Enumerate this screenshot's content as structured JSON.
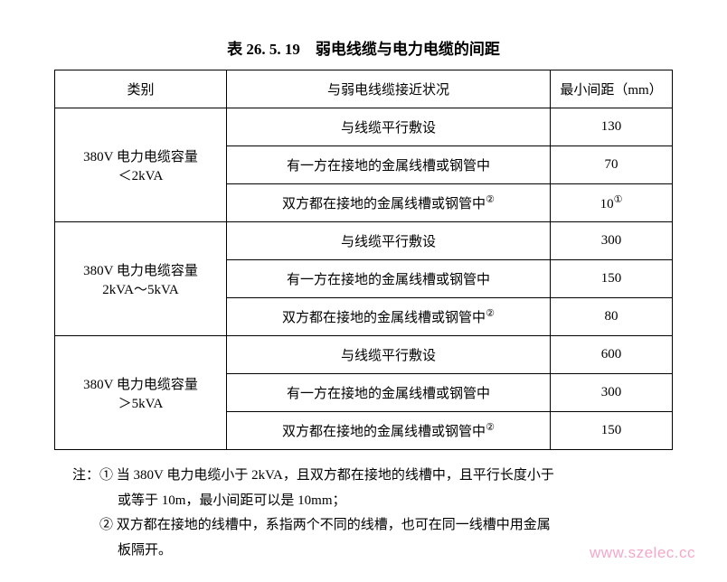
{
  "title": "表 26. 5. 19　弱电线缆与电力电缆的间距",
  "headers": {
    "category": "类别",
    "condition": "与弱电线缆接近状况",
    "distance": "最小间距（mm）"
  },
  "groups": [
    {
      "category_line1": "380V 电力电缆容量",
      "category_line2": "＜2kVA",
      "rows": [
        {
          "condition": "与线缆平行敷设",
          "distance": "130"
        },
        {
          "condition": "有一方在接地的金属线槽或钢管中",
          "distance": "70"
        },
        {
          "condition": "双方都在接地的金属线槽或钢管中",
          "condition_sup": "②",
          "distance": "10",
          "distance_sup": "①"
        }
      ]
    },
    {
      "category_line1": "380V 电力电缆容量",
      "category_line2": "2kVA～5kVA",
      "rows": [
        {
          "condition": "与线缆平行敷设",
          "distance": "300"
        },
        {
          "condition": "有一方在接地的金属线槽或钢管中",
          "distance": "150"
        },
        {
          "condition": "双方都在接地的金属线槽或钢管中",
          "condition_sup": "②",
          "distance": "80"
        }
      ]
    },
    {
      "category_line1": "380V 电力电缆容量",
      "category_line2": "＞5kVA",
      "rows": [
        {
          "condition": "与线缆平行敷设",
          "distance": "600"
        },
        {
          "condition": "有一方在接地的金属线槽或钢管中",
          "distance": "300"
        },
        {
          "condition": "双方都在接地的金属线槽或钢管中",
          "condition_sup": "②",
          "distance": "150"
        }
      ]
    }
  ],
  "notes": {
    "prefix": "注：",
    "n1_mark": "①",
    "n1_line1": "当 380V 电力电缆小于 2kVA，且双方都在接地的线槽中，且平行长度小于",
    "n1_line2": "或等于 10m，最小间距可以是 10mm；",
    "n2_mark": "②",
    "n2_line1": "双方都在接地的线槽中，系指两个不同的线槽，也可在同一线槽中用金属",
    "n2_line2": "板隔开。"
  },
  "watermark": "www.szelec.cc"
}
